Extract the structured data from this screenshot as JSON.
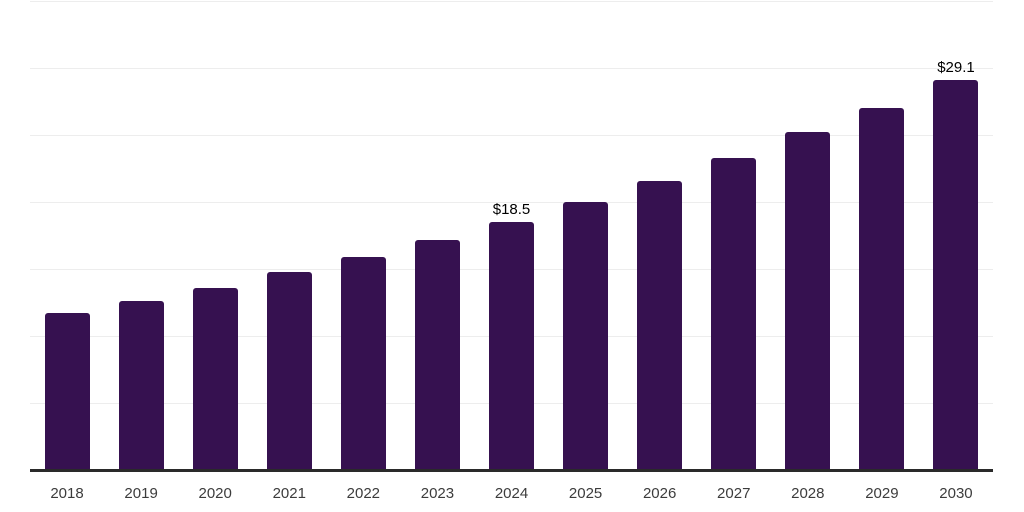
{
  "chart_data": {
    "type": "bar",
    "title": "",
    "xlabel": "",
    "ylabel": "",
    "categories": [
      "2018",
      "2019",
      "2020",
      "2021",
      "2022",
      "2023",
      "2024",
      "2025",
      "2026",
      "2027",
      "2028",
      "2029",
      "2030"
    ],
    "values": [
      11.7,
      12.6,
      13.6,
      14.8,
      15.9,
      17.2,
      18.5,
      20.0,
      21.6,
      23.3,
      25.2,
      27.0,
      29.1
    ],
    "data_labels": {
      "2024": "$18.5",
      "2030": "$29.1"
    },
    "ylim": [
      0,
      35
    ],
    "gridline_step": 5,
    "grid": "horizontal",
    "legend": "none",
    "y_tick_labels_shown": false,
    "bar_color": "#361150",
    "gridline_color": "#ededed",
    "axis_line_color": "#2a2a2a",
    "tick_label_color": "#3c3c3c",
    "data_label_color": "#000000"
  }
}
